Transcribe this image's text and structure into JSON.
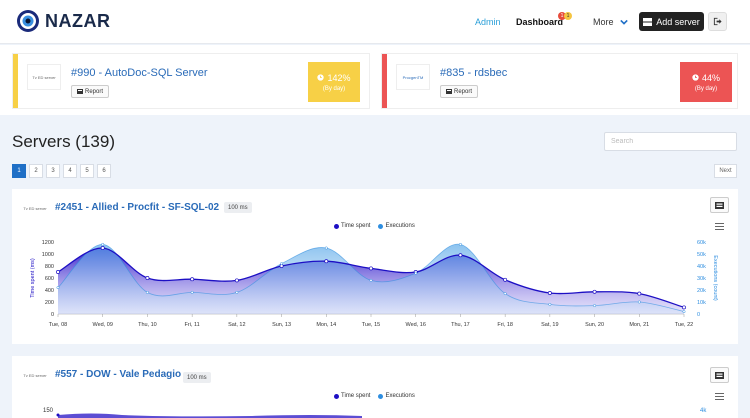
{
  "brand": {
    "name": "NAZAR"
  },
  "nav": {
    "admin": "Admin",
    "dashboard": "Dashboard",
    "badge_red": "1",
    "badge_yellow": "1",
    "more": "More",
    "add_server": "Add server"
  },
  "alerts": [
    {
      "title": "#990 - AutoDoc-SQL Server",
      "report": "Report",
      "percent": "142%",
      "period": "(By day)",
      "color": "#f7d046",
      "thumb": "Tv ED server"
    },
    {
      "title": "#835 - rdsbec",
      "report": "Report",
      "percent": "44%",
      "period": "(By day)",
      "color": "#ec5454",
      "thumb": "ProcgenTM"
    }
  ],
  "servers_header": {
    "title": "Servers (139)",
    "search_placeholder": "Search",
    "pages": [
      "1",
      "2",
      "3",
      "4",
      "5",
      "6"
    ],
    "active_page": "1",
    "next": "Next"
  },
  "servers": [
    {
      "name": "#2451 - Allied - Procfit - SF-SQL-02",
      "ms": "100 ms",
      "thumb": "Tv ED server"
    },
    {
      "name": "#557 - DOW - Vale Pedagio",
      "ms": "100 ms",
      "thumb": "Tv ED server"
    }
  ],
  "chart_data": [
    {
      "type": "area",
      "categories": [
        "Tue, 08",
        "Wed, 09",
        "Thu, 10",
        "Fri, 11",
        "Sat, 12",
        "Sun, 13",
        "Mon, 14",
        "Tue, 15",
        "Wed, 16",
        "Thu, 17",
        "Fri, 18",
        "Sat, 19",
        "Sun, 20",
        "Mon, 21",
        "Tue, 22"
      ],
      "series": [
        {
          "name": "Time spent",
          "axis": "left",
          "color": "#1d0fc4",
          "values": [
            700,
            1100,
            600,
            580,
            560,
            800,
            880,
            760,
            700,
            980,
            570,
            350,
            370,
            340,
            110
          ]
        },
        {
          "name": "Executions",
          "axis": "right",
          "color": "#2e8ee0",
          "values": [
            22000,
            58000,
            18000,
            18000,
            18000,
            42000,
            55000,
            28000,
            34000,
            58000,
            17000,
            8000,
            7000,
            10000,
            2000
          ]
        }
      ],
      "ylabel_left": "Time spent (ms)",
      "ylabel_right": "Executions (count)",
      "ylim_left": [
        0,
        1200
      ],
      "yticks_left": [
        "0",
        "200",
        "400",
        "600",
        "800",
        "1000",
        "1200"
      ],
      "ylim_right": [
        0,
        60000
      ],
      "yticks_right": [
        "0",
        "10k",
        "20k",
        "30k",
        "40k",
        "50k",
        "60k"
      ],
      "legend": "top-center"
    },
    {
      "type": "area",
      "series": [
        {
          "name": "Time spent",
          "axis": "left",
          "color": "#1d0fc4"
        },
        {
          "name": "Executions",
          "axis": "right",
          "color": "#2e8ee0"
        }
      ],
      "yticks_left": [
        "150"
      ],
      "yticks_right": [
        "4k"
      ],
      "legend": "top-center"
    }
  ]
}
